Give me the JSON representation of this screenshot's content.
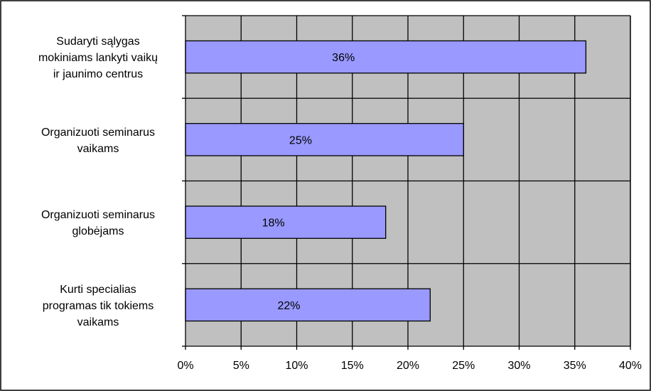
{
  "chart_data": {
    "type": "bar",
    "orientation": "horizontal",
    "title": "",
    "xlabel": "",
    "ylabel": "",
    "categories": [
      [
        "Sudaryti sąlygas",
        "mokiniams lankyti vaikų",
        "ir jaunimo centrus"
      ],
      [
        "Organizuoti seminarus",
        "vaikams"
      ],
      [
        "Organizuoti seminarus",
        "globėjams"
      ],
      [
        "Kurti specialias",
        "programas tik tokiems",
        "vaikams"
      ]
    ],
    "values": [
      36,
      25,
      18,
      22
    ],
    "data_labels": [
      "36%",
      "25%",
      "18%",
      "22%"
    ],
    "xlim": [
      0,
      40
    ],
    "x_ticks": [
      0,
      5,
      10,
      15,
      20,
      25,
      30,
      35,
      40
    ],
    "x_tick_labels": [
      "0%",
      "5%",
      "10%",
      "15%",
      "20%",
      "25%",
      "30%",
      "35%",
      "40%"
    ],
    "grid": true,
    "legend": "none",
    "colors": {
      "bar_fill": "#9999ff",
      "bar_stroke": "#000000",
      "plot_background": "#c0c0c0",
      "grid": "#000000",
      "border": "#000000"
    }
  }
}
